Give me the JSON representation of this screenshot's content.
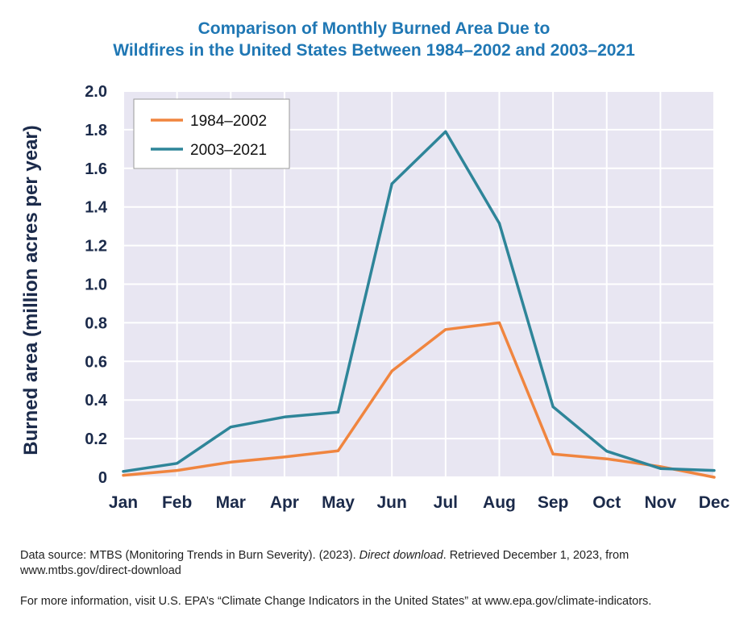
{
  "chart_data": {
    "type": "line",
    "title_lines": [
      "Comparison of Monthly Burned Area Due to",
      "Wildfires in the United States Between 1984–2002 and 2003–2021"
    ],
    "ylabel": "Burned area (million acres per year)",
    "xlabel": "",
    "categories": [
      "Jan",
      "Feb",
      "Mar",
      "Apr",
      "May",
      "Jun",
      "Jul",
      "Aug",
      "Sep",
      "Oct",
      "Nov",
      "Dec"
    ],
    "ylim": [
      0,
      2.0
    ],
    "yticks": [
      "0",
      "0.2",
      "0.4",
      "0.6",
      "0.8",
      "1.0",
      "1.2",
      "1.4",
      "1.6",
      "1.8",
      "2.0"
    ],
    "ytick_values": [
      0,
      0.2,
      0.4,
      0.6,
      0.8,
      1.0,
      1.2,
      1.4,
      1.6,
      1.8,
      2.0
    ],
    "grid": true,
    "legend_position": "top-left",
    "series": [
      {
        "name": "1984–2002",
        "color": "#f0853f",
        "values": [
          0.01,
          0.035,
          0.078,
          0.105,
          0.137,
          0.55,
          0.765,
          0.8,
          0.12,
          0.095,
          0.055,
          0.0
        ]
      },
      {
        "name": "2003–2021",
        "color": "#2e8599",
        "values": [
          0.03,
          0.072,
          0.26,
          0.312,
          0.337,
          1.52,
          1.79,
          1.315,
          0.365,
          0.135,
          0.045,
          0.035
        ]
      }
    ]
  },
  "footer": {
    "source_prefix": "Data source:  MTBS (Monitoring Trends in Burn Severity). (2023). ",
    "source_italic": "Direct download",
    "source_suffix": ". Retrieved December 1, 2023, from",
    "source_line2": "www.mtbs.gov/direct-download",
    "more_info": "For more information, visit U.S. EPA’s “Climate Change Indicators in the United States” at www.epa.gov/climate-indicators."
  },
  "colors": {
    "plot_background": "#e8e6f2",
    "grid": "#ffffff",
    "title": "#1f77b4",
    "axis_text": "#1b2a4a"
  }
}
